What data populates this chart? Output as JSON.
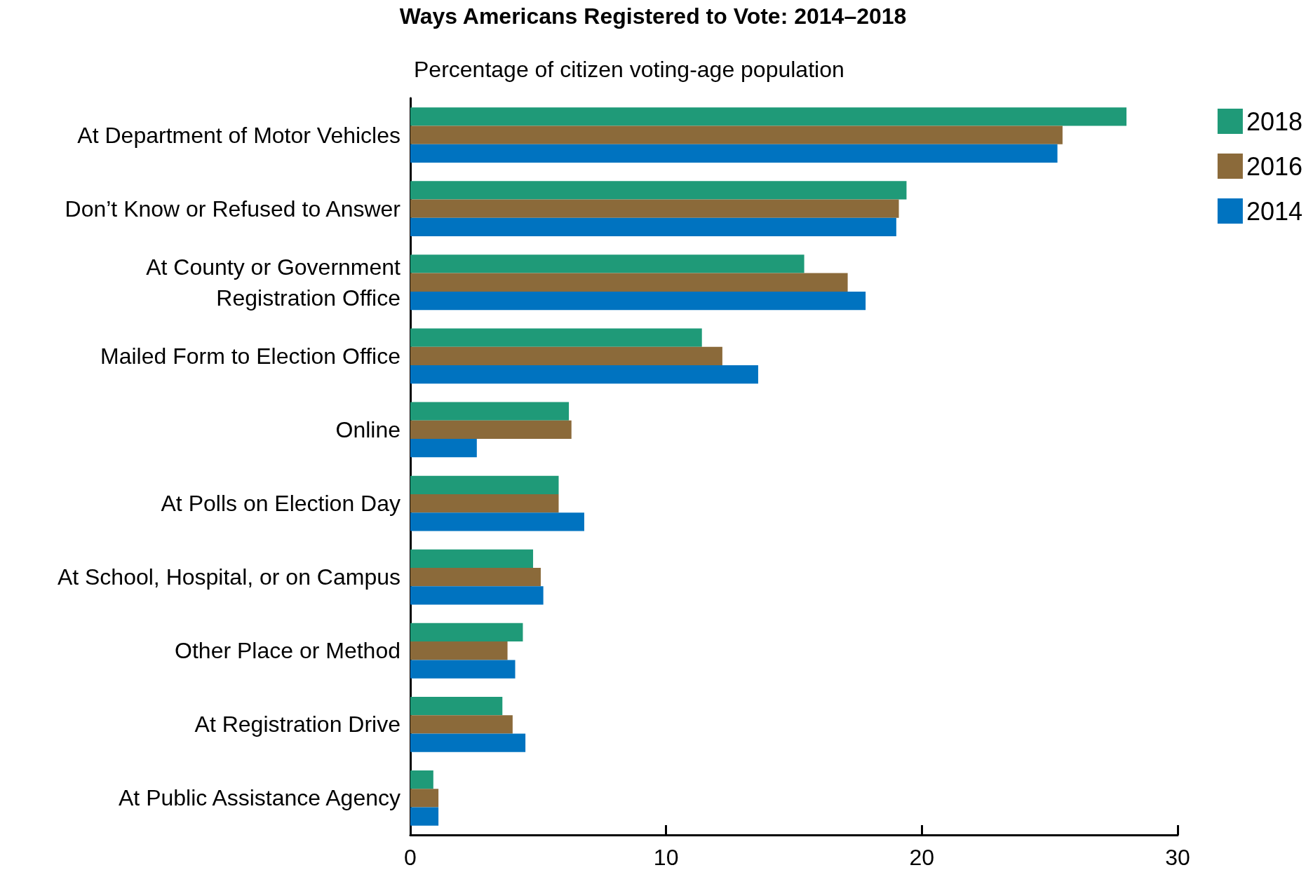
{
  "chart_data": {
    "type": "bar",
    "orientation": "horizontal",
    "title": "Ways Americans Registered to Vote: 2014–2018",
    "subtitle": "Percentage of citizen voting-age population",
    "categories": [
      "At Department of Motor Vehicles",
      "Don’t Know or Refused to Answer",
      "At County or Government\nRegistration Office",
      "Mailed Form to Election Office",
      "Online",
      "At Polls on Election Day",
      "At School, Hospital, or on Campus",
      "Other Place or Method",
      "At Registration Drive",
      "At Public Assistance Agency"
    ],
    "series": [
      {
        "name": "2018",
        "color": "#1f9a78",
        "values": [
          28.0,
          19.4,
          15.4,
          11.4,
          6.2,
          5.8,
          4.8,
          4.4,
          3.6,
          0.9
        ]
      },
      {
        "name": "2016",
        "color": "#8b6a3a",
        "values": [
          25.5,
          19.1,
          17.1,
          12.2,
          6.3,
          5.8,
          5.1,
          3.8,
          4.0,
          1.1
        ]
      },
      {
        "name": "2014",
        "color": "#0073c0",
        "values": [
          25.3,
          19.0,
          17.8,
          13.6,
          2.6,
          6.8,
          5.2,
          4.1,
          4.5,
          1.1
        ]
      }
    ],
    "xlim": [
      0,
      30
    ],
    "xticks": [
      0,
      10,
      20,
      30
    ],
    "grid": false,
    "legend": "top right"
  }
}
